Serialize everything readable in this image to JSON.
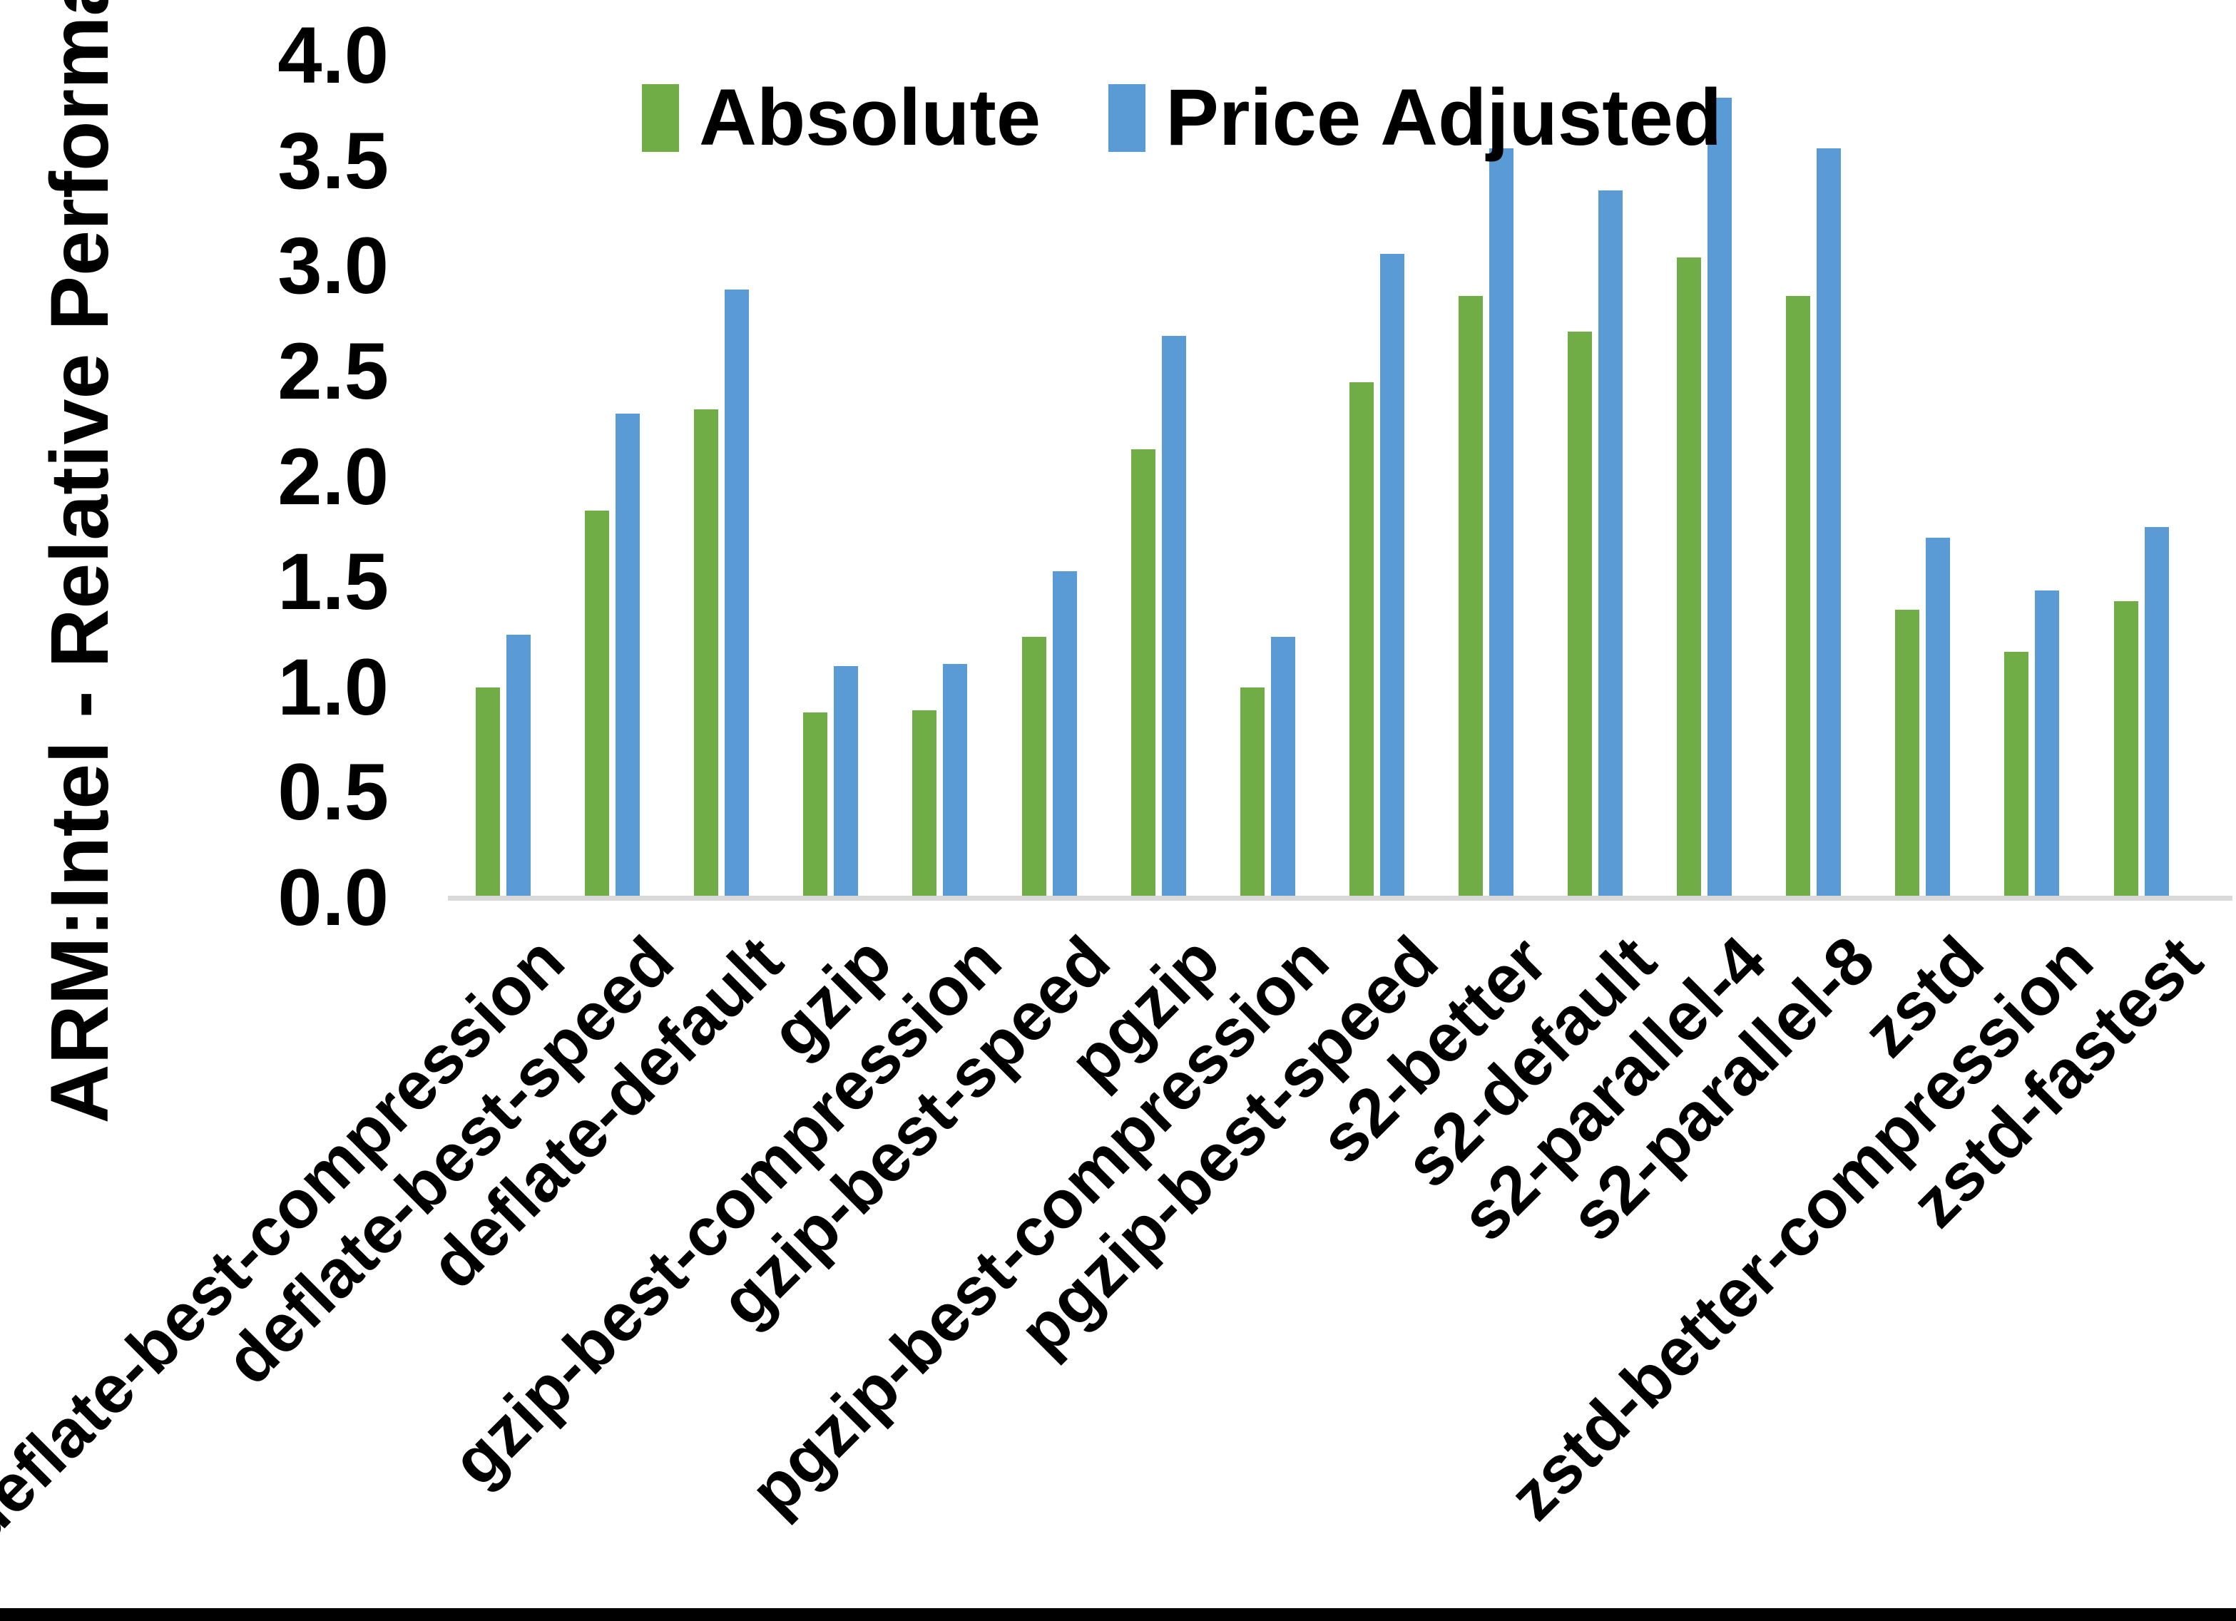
{
  "chart_data": {
    "type": "bar",
    "title": "",
    "xlabel": "",
    "ylabel": "ARM:Intel - Relative Performance",
    "ylim": [
      0.0,
      4.0
    ],
    "ytick_step": 0.5,
    "ytick_labels": [
      "0.0",
      "0.5",
      "1.0",
      "1.5",
      "2.0",
      "2.5",
      "3.0",
      "3.5",
      "4.0"
    ],
    "grid": false,
    "legend_position": "top-center",
    "categories": [
      "deflate-best-compression",
      "deflate-best-speed",
      "deflate-default",
      "gzip",
      "gzip-best-compression",
      "gzip-best-speed",
      "pgzip",
      "pgzip-best-compression",
      "pgzip-best-speed",
      "s2-better",
      "s2-default",
      "s2-parallel-4",
      "s2-parallel-8",
      "zstd",
      "zstd-better-compression",
      "zstd-fastest"
    ],
    "series": [
      {
        "name": "Absolute",
        "color": "#70AD47",
        "values": [
          1.0,
          1.84,
          2.32,
          0.88,
          0.89,
          1.24,
          2.13,
          1.0,
          2.45,
          2.86,
          2.69,
          3.04,
          2.86,
          1.37,
          1.17,
          1.41
        ]
      },
      {
        "name": "Price Adjusted",
        "color": "#5B9BD5",
        "values": [
          1.25,
          2.3,
          2.89,
          1.1,
          1.11,
          1.55,
          2.67,
          1.24,
          3.06,
          3.56,
          3.36,
          3.8,
          3.56,
          1.71,
          1.46,
          1.76
        ]
      }
    ]
  },
  "colors": {
    "axis_line": "#D9D9D9",
    "text": "#000000",
    "background": "#FFFFFF",
    "bottom_bar": "#000000"
  }
}
